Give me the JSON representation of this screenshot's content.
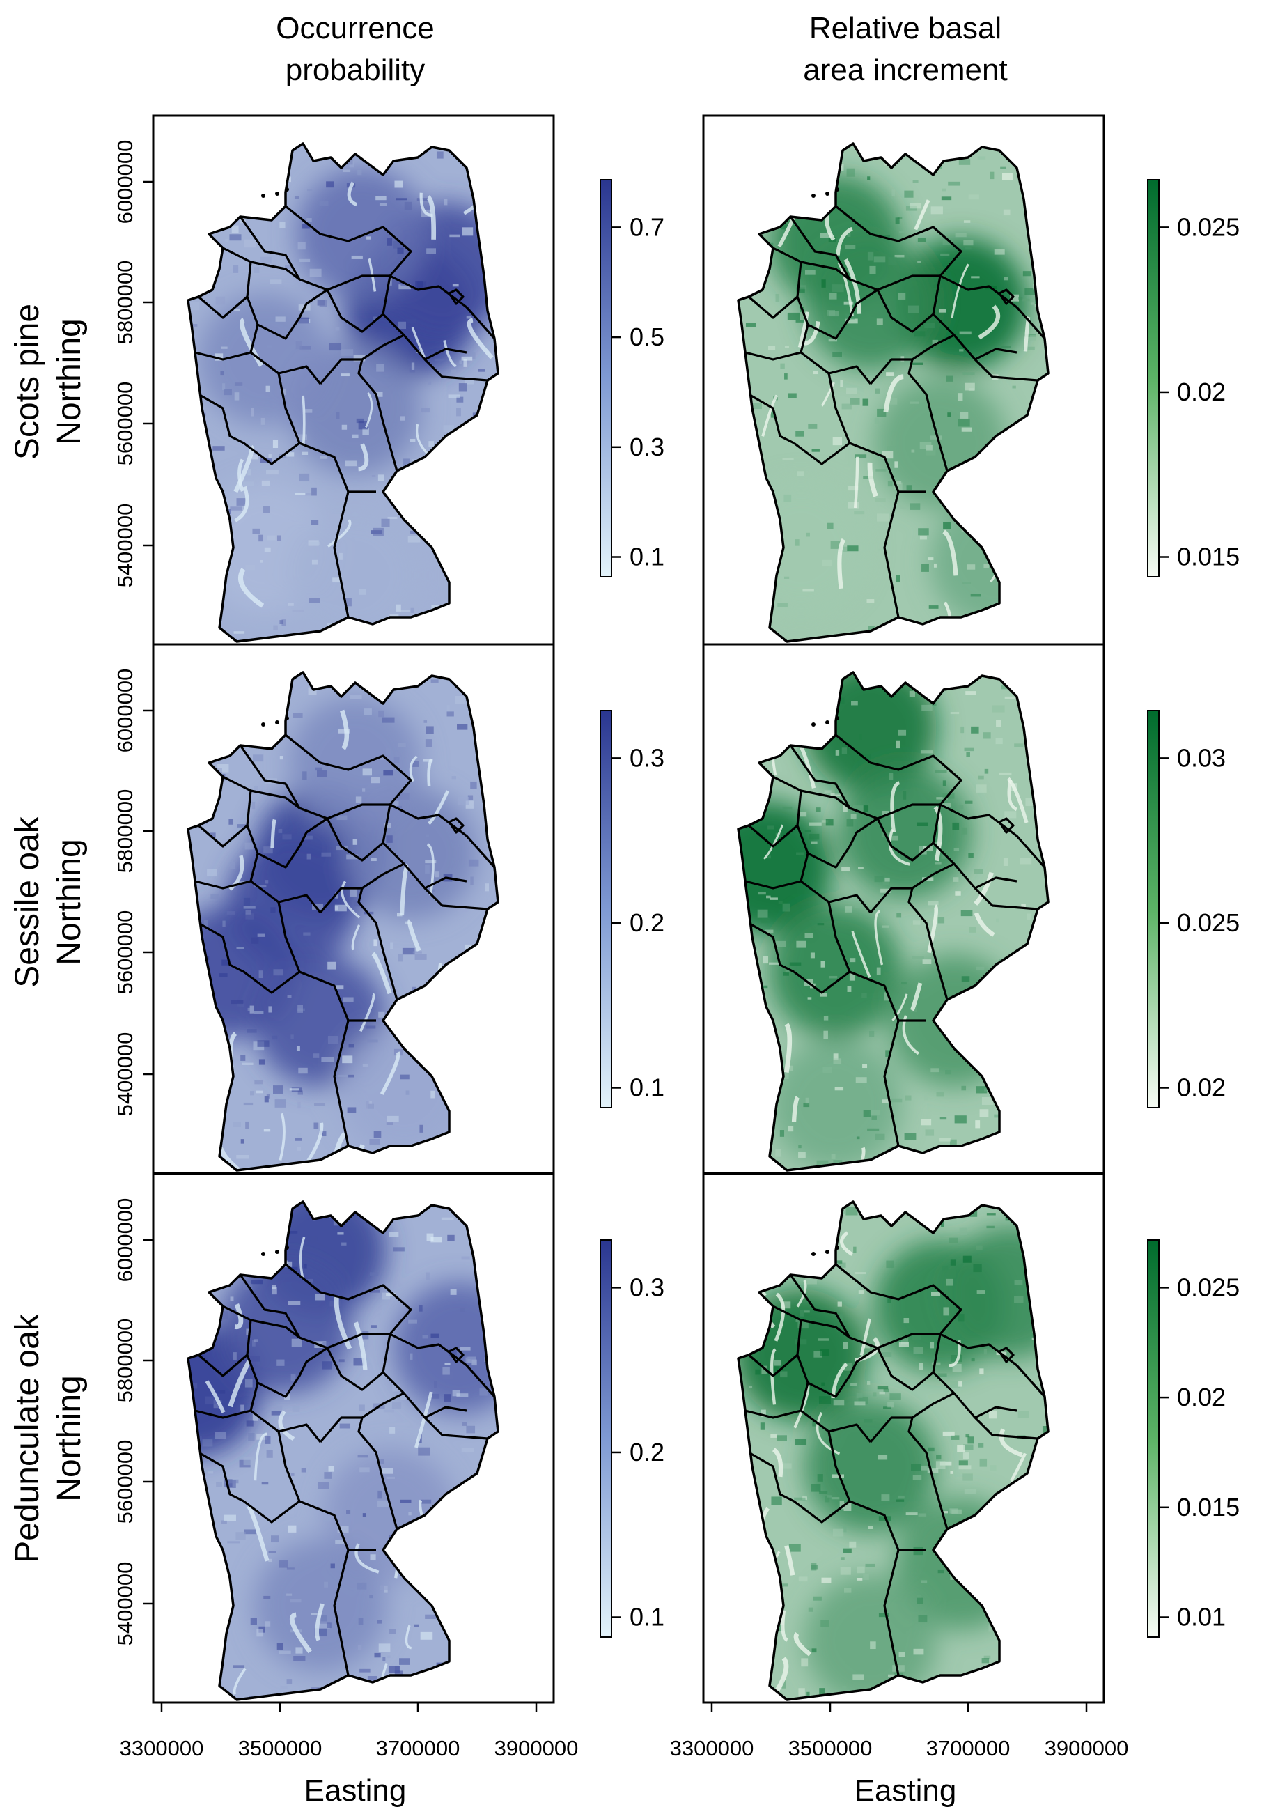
{
  "column_titles": [
    {
      "line1": "Occurrence",
      "line2": "probability"
    },
    {
      "line1": "Relative basal",
      "line2": "area increment"
    }
  ],
  "rows": [
    {
      "species": "Scots pine",
      "axis": "Northing"
    },
    {
      "species": "Sessile oak",
      "axis": "Northing"
    },
    {
      "species": "Pedunculate oak",
      "axis": "Northing"
    }
  ],
  "xlabel": "Easting",
  "x_ticks": [
    "3300000",
    "3500000",
    "3700000",
    "3900000"
  ],
  "y_ticks": [
    "6000000",
    "5800000",
    "5600000",
    "5400000"
  ],
  "colors": {
    "blue_low": "#e3f3fa",
    "blue_high": "#2a3690",
    "green_low": "#f7fcf5",
    "green_high": "#006b2d",
    "border": "#000000"
  },
  "colorbars": [
    {
      "ramp": "blue",
      "ticks": [
        "0.7",
        "0.5",
        "0.3",
        "0.1"
      ]
    },
    {
      "ramp": "green",
      "ticks": [
        "0.025",
        "0.02",
        "0.015"
      ]
    },
    {
      "ramp": "blue",
      "ticks": [
        "0.3",
        "0.2",
        "0.1"
      ]
    },
    {
      "ramp": "green",
      "ticks": [
        "0.03",
        "0.025",
        "0.02"
      ]
    },
    {
      "ramp": "blue",
      "ticks": [
        "0.3",
        "0.2",
        "0.1"
      ]
    },
    {
      "ramp": "green",
      "ticks": [
        "0.025",
        "0.02",
        "0.015",
        "0.01"
      ]
    }
  ]
}
